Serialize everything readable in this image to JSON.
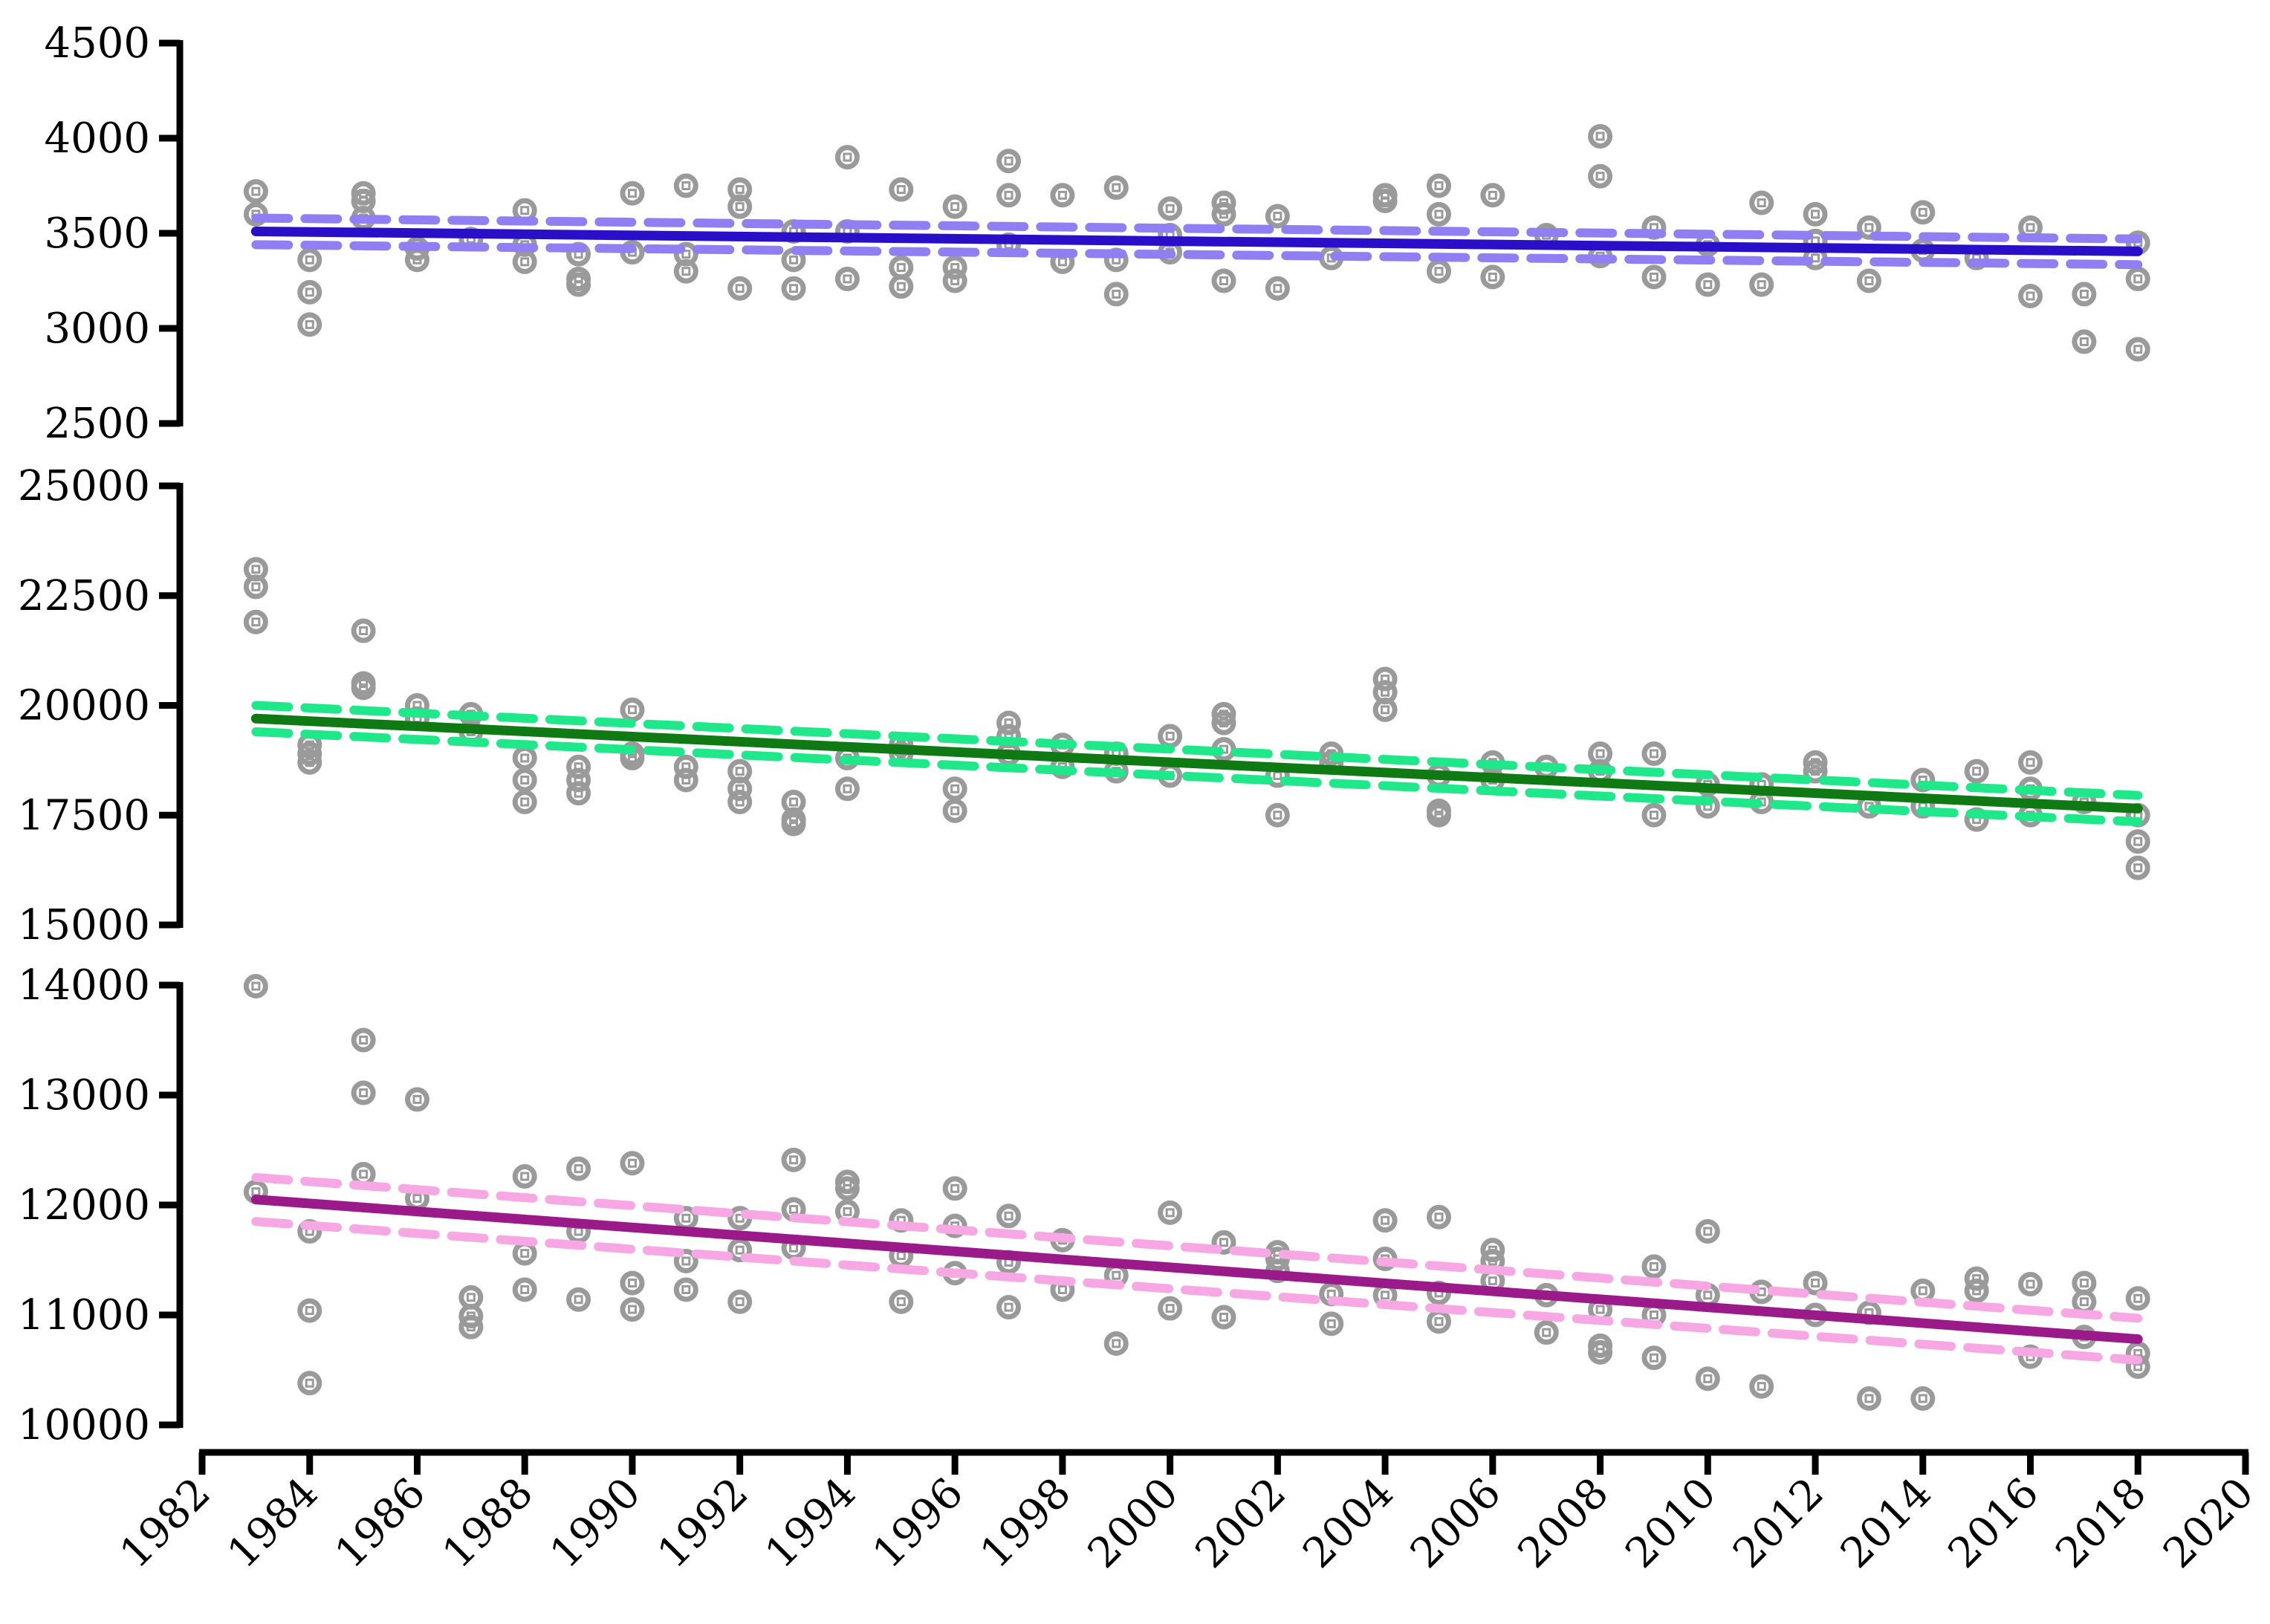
{
  "chart_data": {
    "type": "scatter",
    "x_axis": {
      "range": [
        1982,
        2020
      ],
      "ticks": [
        1982,
        1984,
        1986,
        1988,
        1990,
        1992,
        1994,
        1996,
        1998,
        2000,
        2002,
        2004,
        2006,
        2008,
        2010,
        2012,
        2014,
        2016,
        2018,
        2020
      ],
      "tick_labels": [
        "1982",
        "1984",
        "1986",
        "1988",
        "1990",
        "1992",
        "1994",
        "1996",
        "1998",
        "2000",
        "2002",
        "2004",
        "2006",
        "2008",
        "2010",
        "2012",
        "2014",
        "2016",
        "2018",
        "2020"
      ]
    },
    "point_color": "#9a9a9a",
    "panels": [
      {
        "ylim": [
          2500,
          4500
        ],
        "ticks": [
          2500,
          3000,
          3500,
          4000,
          4500
        ],
        "tick_labels": [
          "2500",
          "3000",
          "3500",
          "4000",
          "4500"
        ],
        "trend_color": "#2a0fc8",
        "ci_color": "#8f7ff2",
        "trend": {
          "x": [
            1983,
            2018
          ],
          "y": [
            3510,
            3405
          ]
        },
        "ci_upper": {
          "x": [
            1983,
            2018
          ],
          "y": [
            3580,
            3470
          ]
        },
        "ci_lower": {
          "x": [
            1983,
            2018
          ],
          "y": [
            3440,
            3335
          ]
        },
        "points": [
          [
            1983,
            3720
          ],
          [
            1983,
            3600
          ],
          [
            1984,
            3360
          ],
          [
            1984,
            3190
          ],
          [
            1984,
            3020
          ],
          [
            1985,
            3710
          ],
          [
            1985,
            3670
          ],
          [
            1985,
            3580
          ],
          [
            1986,
            3420
          ],
          [
            1986,
            3360
          ],
          [
            1987,
            3470
          ],
          [
            1988,
            3620
          ],
          [
            1988,
            3440
          ],
          [
            1988,
            3350
          ],
          [
            1989,
            3390
          ],
          [
            1989,
            3260
          ],
          [
            1989,
            3230
          ],
          [
            1990,
            3710
          ],
          [
            1990,
            3400
          ],
          [
            1991,
            3750
          ],
          [
            1991,
            3390
          ],
          [
            1991,
            3300
          ],
          [
            1992,
            3730
          ],
          [
            1992,
            3640
          ],
          [
            1992,
            3210
          ],
          [
            1993,
            3510
          ],
          [
            1993,
            3360
          ],
          [
            1993,
            3210
          ],
          [
            1994,
            3900
          ],
          [
            1994,
            3510
          ],
          [
            1994,
            3260
          ],
          [
            1995,
            3730
          ],
          [
            1995,
            3320
          ],
          [
            1995,
            3220
          ],
          [
            1996,
            3640
          ],
          [
            1996,
            3320
          ],
          [
            1996,
            3250
          ],
          [
            1997,
            3880
          ],
          [
            1997,
            3700
          ],
          [
            1997,
            3440
          ],
          [
            1998,
            3700
          ],
          [
            1998,
            3350
          ],
          [
            1999,
            3740
          ],
          [
            1999,
            3360
          ],
          [
            1999,
            3180
          ],
          [
            2000,
            3630
          ],
          [
            2000,
            3490
          ],
          [
            2000,
            3400
          ],
          [
            2001,
            3660
          ],
          [
            2001,
            3600
          ],
          [
            2001,
            3250
          ],
          [
            2002,
            3590
          ],
          [
            2002,
            3210
          ],
          [
            2003,
            3370
          ],
          [
            2004,
            3700
          ],
          [
            2004,
            3670
          ],
          [
            2005,
            3750
          ],
          [
            2005,
            3600
          ],
          [
            2005,
            3300
          ],
          [
            2006,
            3700
          ],
          [
            2006,
            3270
          ],
          [
            2007,
            3490
          ],
          [
            2008,
            4010
          ],
          [
            2008,
            3800
          ],
          [
            2008,
            3380
          ],
          [
            2009,
            3530
          ],
          [
            2009,
            3270
          ],
          [
            2010,
            3440
          ],
          [
            2010,
            3230
          ],
          [
            2011,
            3660
          ],
          [
            2011,
            3230
          ],
          [
            2012,
            3600
          ],
          [
            2012,
            3460
          ],
          [
            2012,
            3370
          ],
          [
            2013,
            3530
          ],
          [
            2013,
            3250
          ],
          [
            2014,
            3610
          ],
          [
            2014,
            3410
          ],
          [
            2015,
            3370
          ],
          [
            2016,
            3530
          ],
          [
            2016,
            3170
          ],
          [
            2017,
            3180
          ],
          [
            2017,
            2930
          ],
          [
            2018,
            3450
          ],
          [
            2018,
            3260
          ],
          [
            2018,
            2890
          ]
        ]
      },
      {
        "ylim": [
          15000,
          25000
        ],
        "ticks": [
          15000,
          17500,
          20000,
          22500,
          25000
        ],
        "tick_labels": [
          "15000",
          "17500",
          "20000",
          "22500",
          "25000"
        ],
        "trend_color": "#0f7a14",
        "ci_color": "#1fe88a",
        "trend": {
          "x": [
            1983,
            2018
          ],
          "y": [
            19700,
            17650
          ]
        },
        "ci_upper": {
          "x": [
            1983,
            2018
          ],
          "y": [
            20000,
            17950
          ]
        },
        "ci_lower": {
          "x": [
            1983,
            2018
          ],
          "y": [
            19400,
            17350
          ]
        },
        "points": [
          [
            1983,
            23100
          ],
          [
            1983,
            22700
          ],
          [
            1983,
            21900
          ],
          [
            1984,
            19100
          ],
          [
            1984,
            18900
          ],
          [
            1984,
            18700
          ],
          [
            1985,
            21700
          ],
          [
            1985,
            20500
          ],
          [
            1985,
            20400
          ],
          [
            1986,
            20000
          ],
          [
            1986,
            19700
          ],
          [
            1987,
            19800
          ],
          [
            1987,
            19400
          ],
          [
            1988,
            18800
          ],
          [
            1988,
            18300
          ],
          [
            1988,
            17800
          ],
          [
            1989,
            18600
          ],
          [
            1989,
            18300
          ],
          [
            1989,
            18000
          ],
          [
            1990,
            19900
          ],
          [
            1990,
            18900
          ],
          [
            1990,
            18800
          ],
          [
            1991,
            18600
          ],
          [
            1991,
            18300
          ],
          [
            1992,
            18500
          ],
          [
            1992,
            18100
          ],
          [
            1992,
            17800
          ],
          [
            1993,
            17800
          ],
          [
            1993,
            17400
          ],
          [
            1993,
            17300
          ],
          [
            1994,
            18800
          ],
          [
            1994,
            18100
          ],
          [
            1995,
            19100
          ],
          [
            1995,
            18900
          ],
          [
            1996,
            18100
          ],
          [
            1996,
            17600
          ],
          [
            1997,
            19600
          ],
          [
            1997,
            19300
          ],
          [
            1997,
            18900
          ],
          [
            1998,
            19100
          ],
          [
            1998,
            18600
          ],
          [
            1999,
            18900
          ],
          [
            1999,
            18500
          ],
          [
            2000,
            19300
          ],
          [
            2000,
            18400
          ],
          [
            2001,
            19800
          ],
          [
            2001,
            19600
          ],
          [
            2001,
            19000
          ],
          [
            2002,
            18400
          ],
          [
            2002,
            17500
          ],
          [
            2003,
            18900
          ],
          [
            2003,
            18700
          ],
          [
            2004,
            20600
          ],
          [
            2004,
            20300
          ],
          [
            2004,
            19900
          ],
          [
            2005,
            18400
          ],
          [
            2005,
            17600
          ],
          [
            2005,
            17500
          ],
          [
            2006,
            18700
          ],
          [
            2006,
            18300
          ],
          [
            2007,
            18600
          ],
          [
            2008,
            18900
          ],
          [
            2008,
            18500
          ],
          [
            2009,
            18900
          ],
          [
            2009,
            17500
          ],
          [
            2010,
            18200
          ],
          [
            2010,
            17700
          ],
          [
            2011,
            18200
          ],
          [
            2011,
            17800
          ],
          [
            2012,
            18700
          ],
          [
            2012,
            18500
          ],
          [
            2013,
            17700
          ],
          [
            2014,
            18300
          ],
          [
            2014,
            17700
          ],
          [
            2015,
            18500
          ],
          [
            2015,
            17400
          ],
          [
            2016,
            18700
          ],
          [
            2016,
            18100
          ],
          [
            2016,
            17500
          ],
          [
            2017,
            17800
          ],
          [
            2018,
            17500
          ],
          [
            2018,
            16900
          ],
          [
            2018,
            16300
          ]
        ]
      },
      {
        "ylim": [
          10000,
          14000
        ],
        "ticks": [
          10000,
          11000,
          12000,
          13000,
          14000
        ],
        "tick_labels": [
          "10000",
          "11000",
          "12000",
          "13000",
          "14000"
        ],
        "trend_color": "#9b1a8a",
        "ci_color": "#f7a8e4",
        "trend": {
          "x": [
            1983,
            2018
          ],
          "y": [
            12050,
            10780
          ]
        },
        "ci_upper": {
          "x": [
            1983,
            2018
          ],
          "y": [
            12250,
            10970
          ]
        },
        "ci_lower": {
          "x": [
            1983,
            2018
          ],
          "y": [
            11850,
            10590
          ]
        },
        "points": [
          [
            1983,
            13990
          ],
          [
            1983,
            12120
          ],
          [
            1984,
            11760
          ],
          [
            1984,
            11040
          ],
          [
            1984,
            10380
          ],
          [
            1985,
            13500
          ],
          [
            1985,
            13020
          ],
          [
            1985,
            12280
          ],
          [
            1986,
            12960
          ],
          [
            1986,
            12060
          ],
          [
            1987,
            11160
          ],
          [
            1987,
            10990
          ],
          [
            1987,
            10890
          ],
          [
            1988,
            12260
          ],
          [
            1988,
            11560
          ],
          [
            1988,
            11230
          ],
          [
            1989,
            12330
          ],
          [
            1989,
            11760
          ],
          [
            1989,
            11140
          ],
          [
            1990,
            12380
          ],
          [
            1990,
            11290
          ],
          [
            1990,
            11050
          ],
          [
            1991,
            11880
          ],
          [
            1991,
            11490
          ],
          [
            1991,
            11230
          ],
          [
            1992,
            11880
          ],
          [
            1992,
            11590
          ],
          [
            1992,
            11120
          ],
          [
            1993,
            12410
          ],
          [
            1993,
            11960
          ],
          [
            1993,
            11610
          ],
          [
            1994,
            12210
          ],
          [
            1994,
            12150
          ],
          [
            1994,
            11940
          ],
          [
            1995,
            11860
          ],
          [
            1995,
            11540
          ],
          [
            1995,
            11120
          ],
          [
            1996,
            12150
          ],
          [
            1996,
            11810
          ],
          [
            1996,
            11380
          ],
          [
            1997,
            11900
          ],
          [
            1997,
            11480
          ],
          [
            1997,
            11070
          ],
          [
            1998,
            11680
          ],
          [
            1998,
            11230
          ],
          [
            1999,
            11360
          ],
          [
            1999,
            10740
          ],
          [
            2000,
            11930
          ],
          [
            2000,
            11060
          ],
          [
            2001,
            11660
          ],
          [
            2001,
            10980
          ],
          [
            2002,
            11570
          ],
          [
            2002,
            11510
          ],
          [
            2002,
            11400
          ],
          [
            2003,
            11190
          ],
          [
            2003,
            10920
          ],
          [
            2004,
            11860
          ],
          [
            2004,
            11510
          ],
          [
            2004,
            11180
          ],
          [
            2005,
            11890
          ],
          [
            2005,
            11200
          ],
          [
            2005,
            10940
          ],
          [
            2006,
            11590
          ],
          [
            2006,
            11490
          ],
          [
            2006,
            11310
          ],
          [
            2007,
            11180
          ],
          [
            2007,
            10840
          ],
          [
            2008,
            10720
          ],
          [
            2008,
            10660
          ],
          [
            2008,
            11050
          ],
          [
            2009,
            11440
          ],
          [
            2009,
            11000
          ],
          [
            2009,
            10610
          ],
          [
            2010,
            11760
          ],
          [
            2010,
            11180
          ],
          [
            2010,
            10420
          ],
          [
            2011,
            11210
          ],
          [
            2011,
            10350
          ],
          [
            2012,
            11290
          ],
          [
            2012,
            11000
          ],
          [
            2013,
            11020
          ],
          [
            2013,
            10240
          ],
          [
            2014,
            11220
          ],
          [
            2014,
            10240
          ],
          [
            2015,
            11330
          ],
          [
            2015,
            11220
          ],
          [
            2016,
            11280
          ],
          [
            2016,
            10620
          ],
          [
            2017,
            11290
          ],
          [
            2017,
            11120
          ],
          [
            2017,
            10800
          ],
          [
            2018,
            11150
          ],
          [
            2018,
            10650
          ],
          [
            2018,
            10530
          ]
        ]
      }
    ]
  }
}
